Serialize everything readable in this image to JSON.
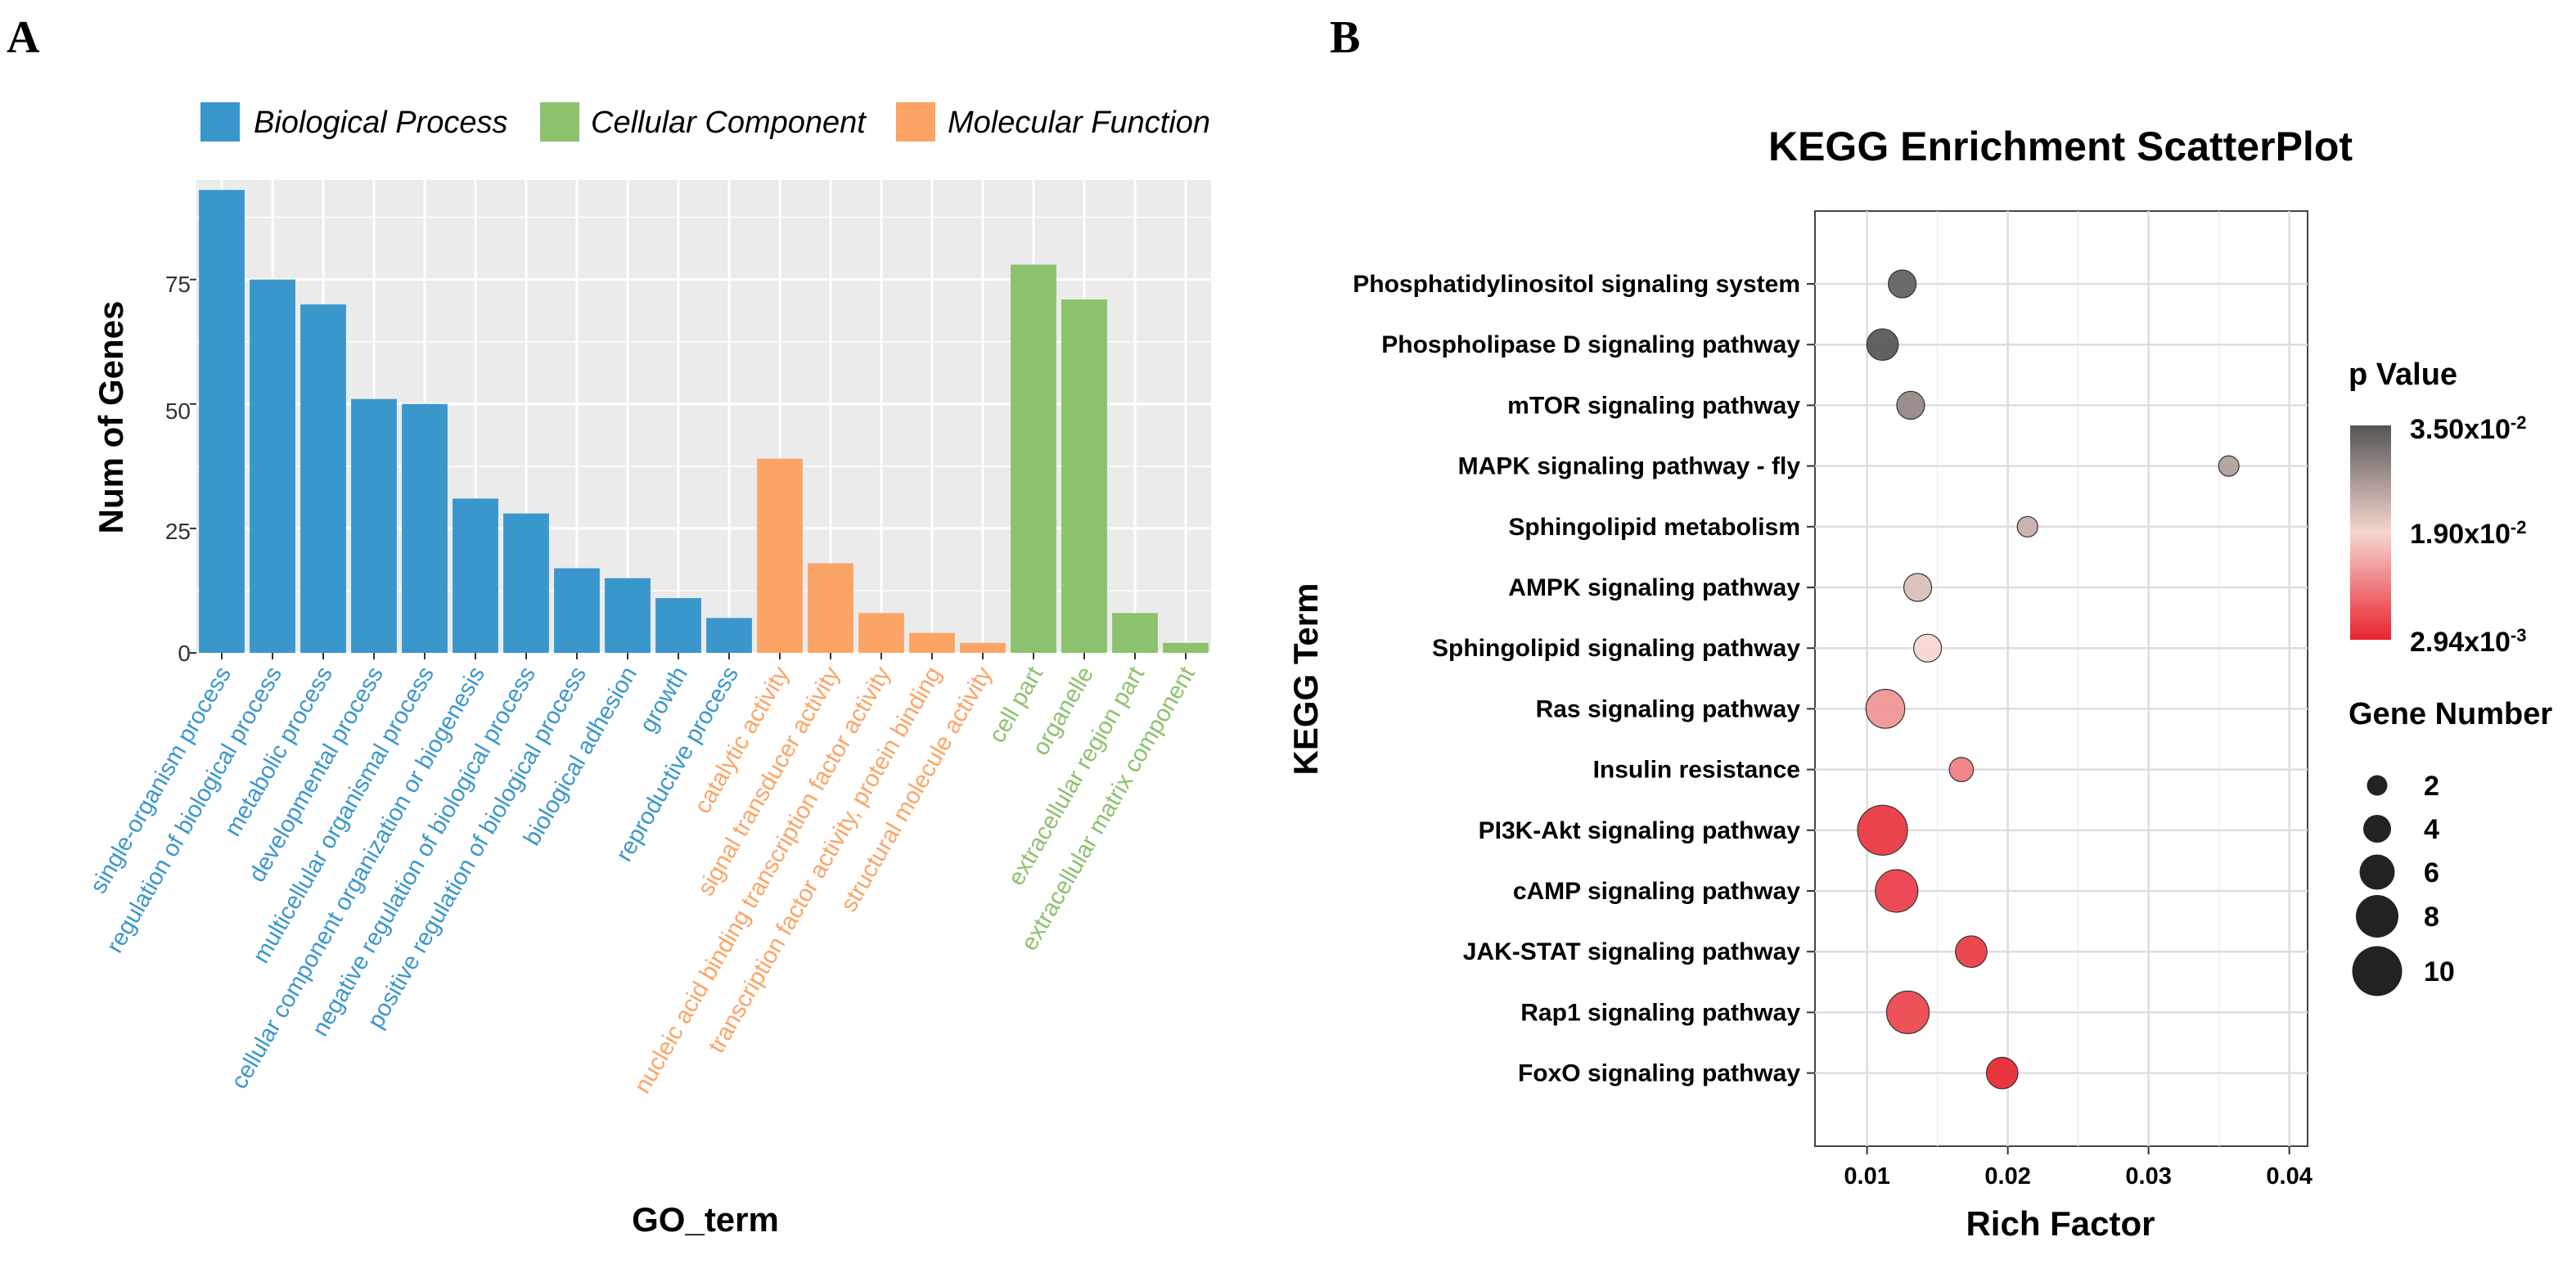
{
  "panels": {
    "a": "A",
    "b": "B"
  },
  "chart_data": [
    {
      "type": "bar",
      "panel": "A",
      "title": "",
      "xlabel": "GO_term",
      "ylabel": "Num of Genes",
      "ylim": [
        0,
        95
      ],
      "yticks": [
        "0",
        "25",
        "50",
        "75"
      ],
      "legend_position": "top",
      "groups": [
        {
          "name": "Biological Process",
          "color": "#3a97cc"
        },
        {
          "name": "Cellular Component",
          "color": "#8cc16e"
        },
        {
          "name": "Molecular Function",
          "color": "#fca465"
        }
      ],
      "categories": [
        "single-organism process",
        "regulation of biological process",
        "metabolic process",
        "developmental process",
        "multicellular organismal process",
        "cellular component organization or biogenesis",
        "negative regulation of biological process",
        "positive regulation of biological process",
        "biological adhesion",
        "growth",
        "reproductive process",
        "catalytic activity",
        "signal transducer activity",
        "nucleic acid binding transcription factor activity",
        "transcription factor activity, protein binding",
        "structural molecule activity",
        "cell part",
        "organelle",
        "extracellular region part",
        "extracellular matrix component"
      ],
      "values": [
        93,
        75,
        70,
        51,
        50,
        31,
        28,
        17,
        15,
        11,
        7,
        39,
        18,
        8,
        4,
        2,
        78,
        71,
        8,
        2
      ],
      "group_index": [
        0,
        0,
        0,
        0,
        0,
        0,
        0,
        0,
        0,
        0,
        0,
        2,
        2,
        2,
        2,
        2,
        1,
        1,
        1,
        1
      ]
    },
    {
      "type": "scatter",
      "panel": "B",
      "title": "KEGG Enrichment ScatterPlot",
      "xlabel": "Rich Factor",
      "ylabel": "KEGG Term",
      "xlim": [
        0.0063,
        0.0413
      ],
      "xticks": [
        "0.01",
        "0.02",
        "0.03",
        "0.04"
      ],
      "terms": [
        "Phosphatidylinositol signaling system",
        "Phospholipase D signaling pathway",
        "mTOR signaling pathway",
        "MAPK signaling pathway - fly",
        "Sphingolipid metabolism",
        "AMPK signaling pathway",
        "Sphingolipid signaling pathway",
        "Ras signaling pathway",
        "Insulin resistance",
        "PI3K-Akt signaling pathway",
        "cAMP signaling pathway",
        "JAK-STAT signaling pathway",
        "Rap1 signaling pathway",
        "FoxO signaling pathway"
      ],
      "rich_factor": [
        0.0125,
        0.0111,
        0.0131,
        0.0357,
        0.0214,
        0.0136,
        0.0143,
        0.0113,
        0.0167,
        0.0111,
        0.0121,
        0.0174,
        0.0129,
        0.0196
      ],
      "gene_number": [
        4,
        5,
        4,
        2,
        2,
        4,
        4,
        7,
        3,
        10,
        8,
        5,
        8,
        5
      ],
      "p_value": [
        0.034,
        0.035,
        0.029,
        0.026,
        0.024,
        0.022,
        0.019,
        0.013,
        0.011,
        0.0045,
        0.0052,
        0.0048,
        0.0058,
        0.003
      ],
      "legend_color": {
        "title": "p Value",
        "high": {
          "mantissa": "3.50x10",
          "exp": "-2"
        },
        "mid": {
          "mantissa": "1.90x10",
          "exp": "-2"
        },
        "low": {
          "mantissa": "2.94x10",
          "exp": "-3"
        },
        "color_high": "#555555",
        "color_mid": "#f7d6cf",
        "color_low": "#e8232f"
      },
      "legend_size": {
        "title": "Gene Number",
        "entries": [
          "2",
          "4",
          "6",
          "8",
          "10"
        ]
      }
    }
  ]
}
